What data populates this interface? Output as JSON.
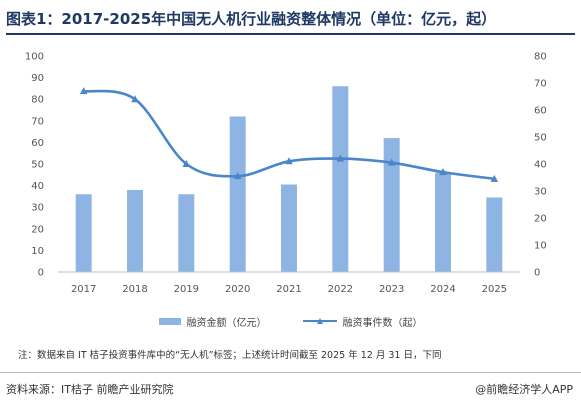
{
  "header": {
    "title": "图表1：2017-2025年中国无人机行业融资整体情况（单位：亿元，起）"
  },
  "chart_data": {
    "type": "bar",
    "categories": [
      "2017",
      "2018",
      "2019",
      "2020",
      "2021",
      "2022",
      "2023",
      "2024",
      "2025"
    ],
    "series": [
      {
        "name": "融资金额（亿元）",
        "type": "bar",
        "axis": "left",
        "values": [
          36,
          38,
          36,
          72,
          40.5,
          86,
          62,
          46,
          34.5
        ]
      },
      {
        "name": "融资事件数（起）",
        "type": "line",
        "axis": "right",
        "values": [
          67,
          64,
          40,
          35.5,
          41,
          42,
          40.5,
          37,
          34.5
        ]
      }
    ],
    "y_left": {
      "min": 0,
      "max": 100,
      "ticks": [
        0,
        10,
        20,
        30,
        40,
        50,
        60,
        70,
        80,
        90,
        100
      ]
    },
    "y_right": {
      "min": 0,
      "max": 80,
      "ticks": [
        0,
        10,
        20,
        30,
        40,
        50,
        60,
        70,
        80
      ]
    },
    "legend": "bottom-center",
    "grid": false,
    "colors": {
      "bar": "#8eb4e3",
      "line": "#4a86c8"
    }
  },
  "note": "注：数据来自 IT 桔子投资事件库中的“无人机”标签；上述统计时间截至 2025 年 12 月 31 日，下同",
  "footer": {
    "source": "资料来源：IT桔子  前瞻产业研究院",
    "brand": "@前瞻经济学人APP"
  }
}
